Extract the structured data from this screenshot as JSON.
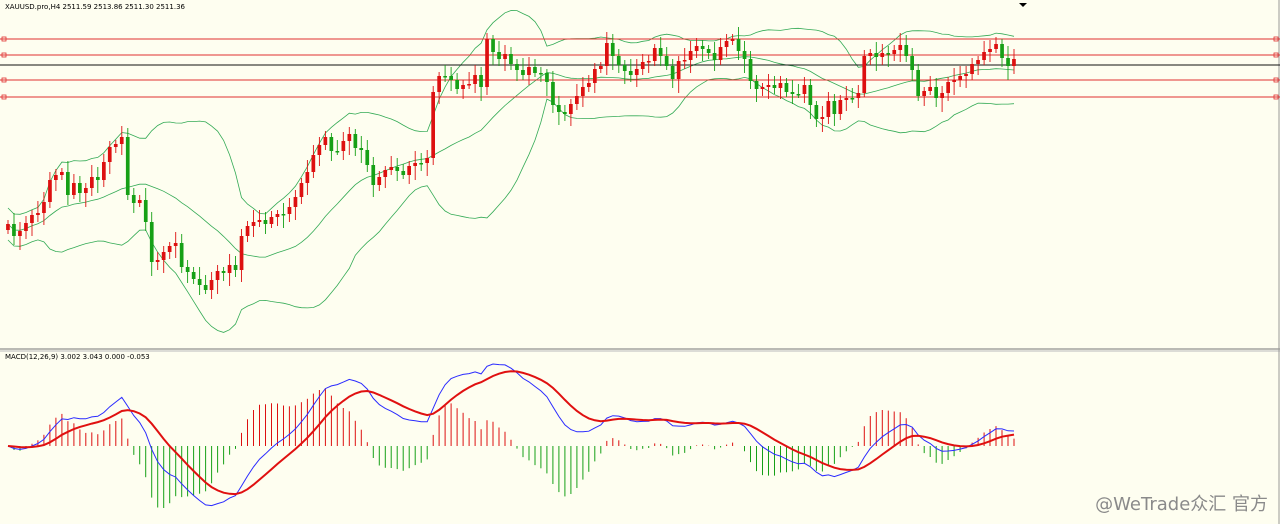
{
  "header": {
    "symbol_info": "XAUUSD.pro,H4  2511.59 2513.86 2511.30 2511.36",
    "macd_info": "MACD(12,26,9) 3.002 3.043 0.000 -0.053"
  },
  "watermark": "@WeTrade众汇 官方",
  "colors": {
    "background": "#fefef0",
    "bull": "#dd1010",
    "bear": "#16a016",
    "bands": "#33aa55",
    "level": "#e03030",
    "price_line": "#111111",
    "macd_line": "#2a2aff",
    "signal_line": "#e01010"
  },
  "chart_data": [
    {
      "type": "candlestick",
      "symbol": "XAUUSD.pro",
      "timeframe": "H4",
      "ohlc": {
        "open": 2511.59,
        "high": 2513.86,
        "low": 2511.3,
        "close": 2511.36
      },
      "indicators": [
        "Bollinger Bands"
      ],
      "horizontal_levels": 5,
      "y_index": [
        224,
        236,
        231,
        223,
        215,
        213,
        202,
        180,
        175,
        172,
        195,
        183,
        193,
        188,
        177,
        180,
        162,
        147,
        144,
        137,
        195,
        203,
        200,
        222,
        262,
        260,
        252,
        246,
        243,
        267,
        272,
        279,
        285,
        290,
        280,
        271,
        273,
        265,
        270,
        236,
        226,
        222,
        220,
        224,
        217,
        214,
        214,
        207,
        197,
        183,
        172,
        155,
        145,
        137,
        151,
        151,
        141,
        134,
        148,
        150,
        165,
        185,
        177,
        170,
        167,
        171,
        175,
        166,
        163,
        163,
        158,
        92,
        76,
        76,
        80,
        89,
        85,
        84,
        75,
        87,
        39,
        52,
        59,
        54,
        64,
        70,
        75,
        67,
        73,
        73,
        82,
        105,
        112,
        114,
        104,
        96,
        87,
        83,
        69,
        66,
        43,
        56,
        65,
        71,
        75,
        69,
        62,
        61,
        48,
        56,
        66,
        79,
        61,
        60,
        51,
        46,
        49,
        53,
        60,
        47,
        41,
        39,
        51,
        59,
        81,
        89,
        87,
        85,
        88,
        83,
        92,
        94,
        94,
        85,
        105,
        119,
        117,
        101,
        114,
        100,
        98,
        98,
        93,
        56,
        53,
        57,
        53,
        54,
        50,
        45,
        56,
        70,
        96,
        91,
        87,
        98,
        93,
        82,
        80,
        76,
        74,
        64,
        60,
        52,
        49,
        44,
        58,
        66,
        59
      ],
      "macd_panel": {
        "title": "MACD(12,26,9)",
        "values": [
          3.002,
          3.043,
          0.0,
          -0.053
        ]
      }
    }
  ]
}
